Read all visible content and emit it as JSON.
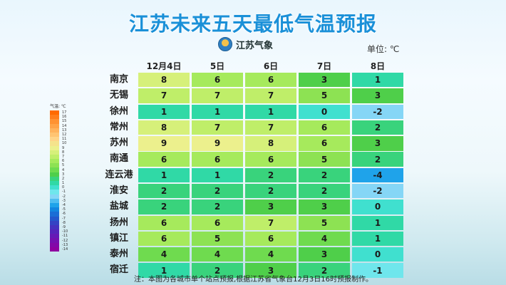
{
  "title": "江苏未来五天最低气温预报",
  "logo_text": "江苏气象",
  "unit_label": "单位: ℃",
  "legend_caption": "气温: ℃",
  "legend": [
    {
      "label": "17",
      "color": "#ff6a00"
    },
    {
      "label": "16",
      "color": "#ff7d1a"
    },
    {
      "label": "15",
      "color": "#ff9232"
    },
    {
      "label": "14",
      "color": "#ffa347"
    },
    {
      "label": "13",
      "color": "#ffb35c"
    },
    {
      "label": "12",
      "color": "#ffc472"
    },
    {
      "label": "11",
      "color": "#ffd488"
    },
    {
      "label": "10",
      "color": "#f5e38c"
    },
    {
      "label": "9",
      "color": "#ecf08d"
    },
    {
      "label": "8",
      "color": "#d6f07a"
    },
    {
      "label": "7",
      "color": "#bfee69"
    },
    {
      "label": "6",
      "color": "#a6ea5c"
    },
    {
      "label": "5",
      "color": "#8de253"
    },
    {
      "label": "4",
      "color": "#6fdb4f"
    },
    {
      "label": "3",
      "color": "#4fcf4a"
    },
    {
      "label": "2",
      "color": "#39d37c"
    },
    {
      "label": "1",
      "color": "#30d9a6"
    },
    {
      "label": "0",
      "color": "#40e0cf"
    },
    {
      "label": "-1",
      "color": "#6fe6ec"
    },
    {
      "label": "-2",
      "color": "#85d6f6"
    },
    {
      "label": "-3",
      "color": "#4fbdf0"
    },
    {
      "label": "-4",
      "color": "#1fa3ea"
    },
    {
      "label": "-5",
      "color": "#1386e0"
    },
    {
      "label": "-6",
      "color": "#1b6dd6"
    },
    {
      "label": "-7",
      "color": "#2457cc"
    },
    {
      "label": "-8",
      "color": "#3443c4"
    },
    {
      "label": "-9",
      "color": "#4532bf"
    },
    {
      "label": "-10",
      "color": "#5524bb"
    },
    {
      "label": "-11",
      "color": "#6519b6"
    },
    {
      "label": "-12",
      "color": "#7410b0"
    },
    {
      "label": "-13",
      "color": "#8208a8"
    },
    {
      "label": "-14",
      "color": "#8f00a0"
    }
  ],
  "columns": [
    "12月4日",
    "5日",
    "6日",
    "7日",
    "8日"
  ],
  "rows": [
    {
      "city": "南京",
      "values": [
        8,
        6,
        6,
        3,
        1
      ]
    },
    {
      "city": "无锡",
      "values": [
        7,
        7,
        7,
        5,
        3
      ]
    },
    {
      "city": "徐州",
      "values": [
        1,
        1,
        1,
        0,
        -2
      ]
    },
    {
      "city": "常州",
      "values": [
        8,
        7,
        7,
        6,
        2
      ]
    },
    {
      "city": "苏州",
      "values": [
        9,
        9,
        8,
        6,
        3
      ]
    },
    {
      "city": "南通",
      "values": [
        6,
        6,
        6,
        5,
        2
      ]
    },
    {
      "city": "连云港",
      "values": [
        1,
        1,
        2,
        2,
        -4
      ]
    },
    {
      "city": "淮安",
      "values": [
        2,
        2,
        2,
        2,
        -2
      ]
    },
    {
      "city": "盐城",
      "values": [
        2,
        2,
        3,
        3,
        0
      ]
    },
    {
      "city": "扬州",
      "values": [
        6,
        6,
        7,
        5,
        1
      ]
    },
    {
      "city": "镇江",
      "values": [
        6,
        5,
        6,
        4,
        1
      ]
    },
    {
      "city": "泰州",
      "values": [
        4,
        4,
        4,
        3,
        0
      ]
    },
    {
      "city": "宿迁",
      "values": [
        1,
        2,
        3,
        2,
        -1
      ]
    }
  ],
  "footnote": "注：本图为各城市单个站点预报,根据江苏省气象台12月3日16时预报制作。"
}
